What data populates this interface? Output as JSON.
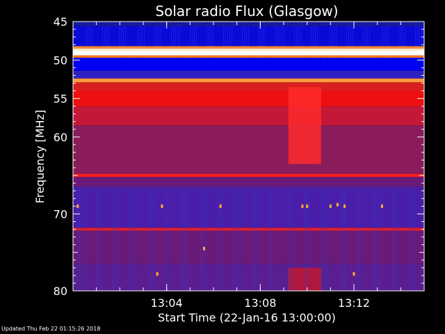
{
  "footer": "Updated Thu Feb 22 01:15:26 2018",
  "chart_data": {
    "type": "heatmap",
    "title": "Solar radio Flux (Glasgow)",
    "xlabel": "Start Time (22-Jan-16 13:00:00)",
    "ylabel": "Frequency [MHz]",
    "x_unit": "minutes after 13:00:00",
    "xlim": [
      0,
      15
    ],
    "ylim": [
      80,
      45
    ],
    "x_ticks": [
      {
        "value": 4,
        "label": "13:04"
      },
      {
        "value": 8,
        "label": "13:08"
      },
      {
        "value": 12,
        "label": "13:12"
      }
    ],
    "y_ticks": [
      45,
      50,
      55,
      60,
      70,
      80
    ],
    "frequency_bands": [
      {
        "from": 45.0,
        "to": 45.6,
        "color": "#1a1a9c"
      },
      {
        "from": 45.6,
        "to": 48.2,
        "color": "#0a0ad8"
      },
      {
        "from": 48.2,
        "to": 48.5,
        "color": "#ff8a30"
      },
      {
        "from": 48.5,
        "to": 48.8,
        "color": "#ffe8c8"
      },
      {
        "from": 48.8,
        "to": 49.4,
        "color": "#ffffff"
      },
      {
        "from": 49.4,
        "to": 49.7,
        "color": "#ff7a20"
      },
      {
        "from": 49.7,
        "to": 51.4,
        "color": "#0000f0"
      },
      {
        "from": 51.4,
        "to": 52.4,
        "color": "#3020c0"
      },
      {
        "from": 52.4,
        "to": 52.9,
        "color": "#ff9a40"
      },
      {
        "from": 52.9,
        "to": 54.0,
        "color": "#d82020"
      },
      {
        "from": 54.0,
        "to": 56.0,
        "color": "#ee1010"
      },
      {
        "from": 56.0,
        "to": 58.5,
        "color": "#c41838"
      },
      {
        "from": 58.5,
        "to": 64.8,
        "color": "#8a1c5c"
      },
      {
        "from": 64.8,
        "to": 65.2,
        "color": "#ff2020"
      },
      {
        "from": 65.2,
        "to": 66.5,
        "color": "#6a1a78"
      },
      {
        "from": 66.5,
        "to": 71.8,
        "color": "#4a1ea8"
      },
      {
        "from": 71.8,
        "to": 72.2,
        "color": "#e02030"
      },
      {
        "from": 72.2,
        "to": 76.5,
        "color": "#6a1a78"
      },
      {
        "from": 76.5,
        "to": 80.0,
        "color": "#5a1e90"
      }
    ],
    "burst_region": {
      "x_from": 9.2,
      "x_to": 10.6,
      "freq_from": 53.5,
      "freq_to": 63.5,
      "color": "#ff2a2a"
    },
    "burst_low_region": {
      "x_from": 9.2,
      "x_to": 10.6,
      "freq_from": 77.0,
      "freq_to": 80.0,
      "color": "#c01830"
    },
    "spikes": [
      {
        "x": 0.2,
        "freq": 69.0
      },
      {
        "x": 3.8,
        "freq": 69.0
      },
      {
        "x": 6.3,
        "freq": 69.0
      },
      {
        "x": 9.8,
        "freq": 69.0
      },
      {
        "x": 10.0,
        "freq": 69.0
      },
      {
        "x": 11.0,
        "freq": 69.0
      },
      {
        "x": 11.3,
        "freq": 68.8
      },
      {
        "x": 11.6,
        "freq": 69.0
      },
      {
        "x": 13.2,
        "freq": 69.0
      },
      {
        "x": 5.6,
        "freq": 74.5
      },
      {
        "x": 3.6,
        "freq": 77.8
      },
      {
        "x": 12.0,
        "freq": 77.8
      }
    ]
  }
}
